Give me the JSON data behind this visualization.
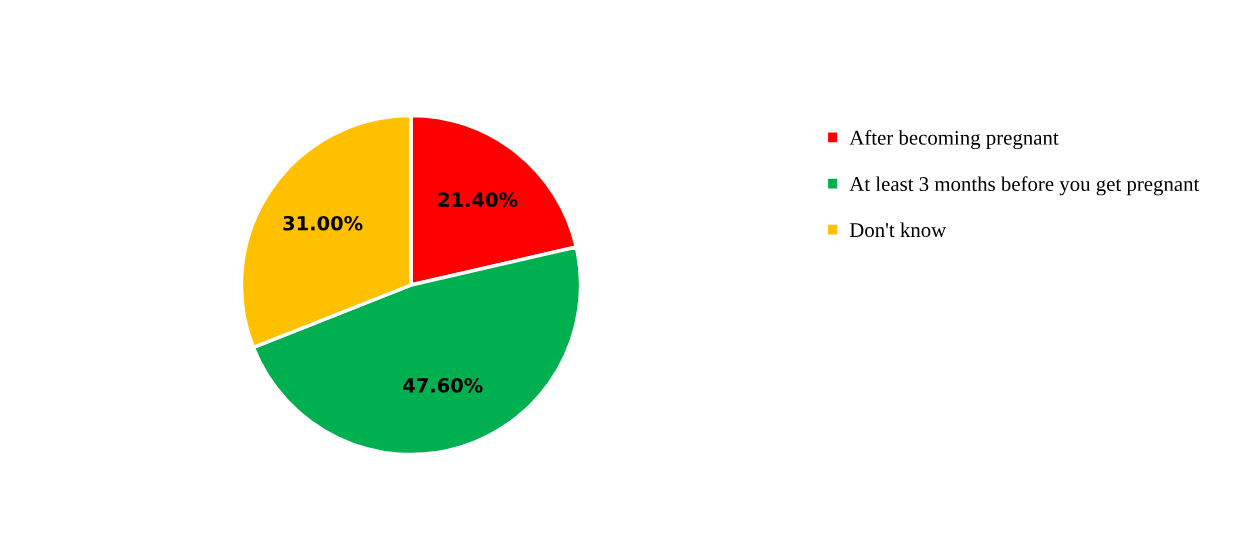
{
  "chart_data": {
    "type": "pie",
    "categories": [
      "After becoming pregnant",
      "At least 3 months before you get pregnant",
      "Don't know"
    ],
    "values": [
      21.4,
      47.6,
      31.0
    ],
    "colors": [
      "#ff0000",
      "#00b050",
      "#ffc000"
    ],
    "value_labels": [
      "21.40%",
      "47.60%",
      "31.00%"
    ],
    "legend": "right"
  }
}
